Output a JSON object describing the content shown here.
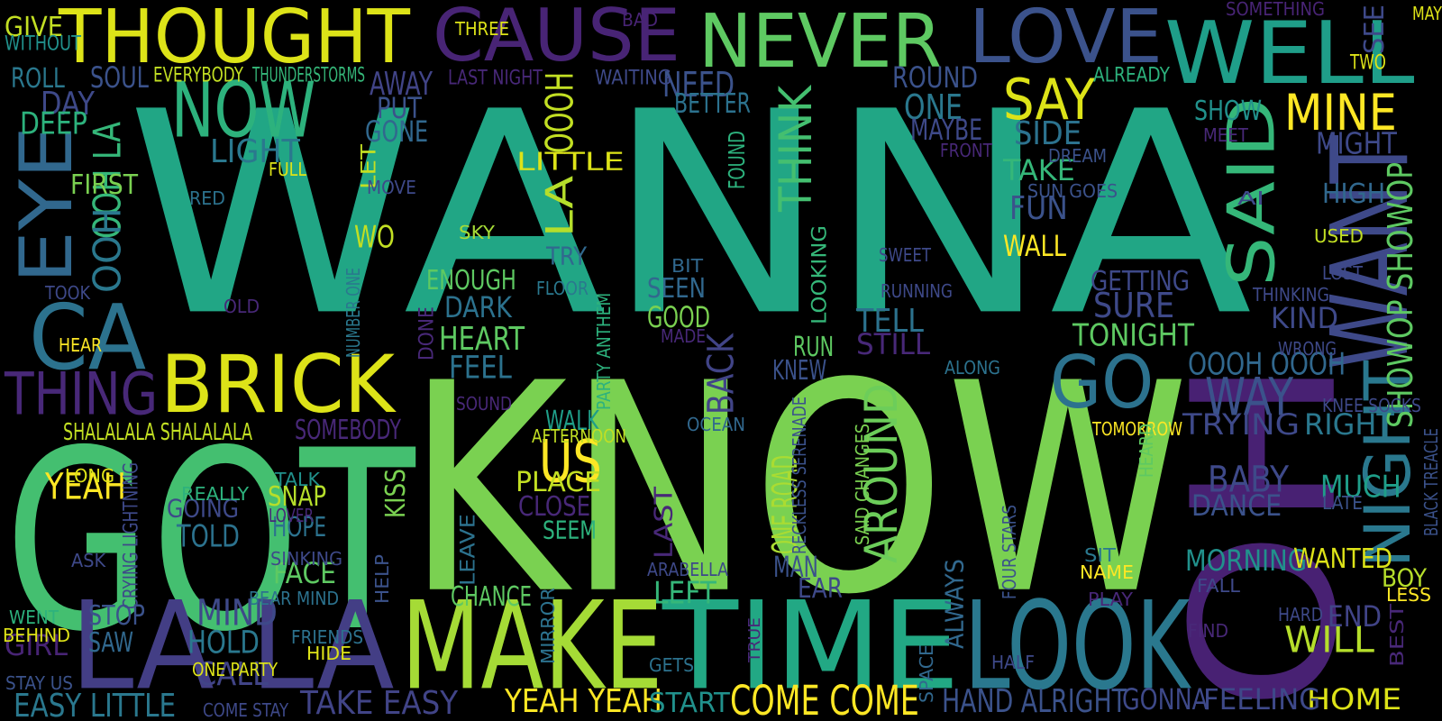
{
  "words": [
    {
      "text": "WANNA",
      "color": "#21a685",
      "vertical": false
    },
    {
      "text": "KNOW",
      "color": "#7ad151",
      "vertical": false
    },
    {
      "text": "GOT",
      "color": "#44bf70",
      "vertical": false
    },
    {
      "text": "OH",
      "color": "#482173",
      "vertical": true
    },
    {
      "text": "LOOK",
      "color": "#2a788e",
      "vertical": false
    },
    {
      "text": "TIME",
      "color": "#22a884",
      "vertical": false
    },
    {
      "text": "MAKE",
      "color": "#a5db36",
      "vertical": false
    },
    {
      "text": "LA LA",
      "color": "#433e85",
      "vertical": false
    },
    {
      "text": "THOUGHT",
      "color": "#dde318",
      "vertical": false
    },
    {
      "text": "CAUSE",
      "color": "#482475",
      "vertical": false
    },
    {
      "text": "NEVER",
      "color": "#5ec962",
      "vertical": false
    },
    {
      "text": "LOVE",
      "color": "#3b528b",
      "vertical": false
    },
    {
      "text": "WELL",
      "color": "#1f9e89",
      "vertical": false
    },
    {
      "text": "NOW",
      "color": "#2db27d",
      "vertical": false
    },
    {
      "text": "BRICK",
      "color": "#dde318",
      "vertical": false
    },
    {
      "text": "CA",
      "color": "#2c728e",
      "vertical": false
    },
    {
      "text": "EYE",
      "color": "#31688e",
      "vertical": true
    },
    {
      "text": "THING",
      "color": "#482878",
      "vertical": false
    },
    {
      "text": "GO",
      "color": "#2c728e",
      "vertical": false
    },
    {
      "text": "WANT",
      "color": "#3e4989",
      "vertical": true
    },
    {
      "text": "SAID",
      "color": "#35b779",
      "vertical": true
    },
    {
      "text": "NIGHT",
      "color": "#2a788e",
      "vertical": true
    },
    {
      "text": "SAY",
      "color": "#dde318",
      "vertical": false
    },
    {
      "text": "MINE",
      "color": "#fde725",
      "vertical": false
    },
    {
      "text": "WAY",
      "color": "#3b528b",
      "vertical": false
    },
    {
      "text": "AROUND",
      "color": "#6ccd5a",
      "vertical": true
    },
    {
      "text": "US",
      "color": "#fde725",
      "vertical": false
    },
    {
      "text": "THINK",
      "color": "#44bf70",
      "vertical": true
    },
    {
      "text": "OOOH",
      "color": "#c2df23",
      "vertical": true
    },
    {
      "text": "LA",
      "color": "#b5de2b",
      "vertical": true
    },
    {
      "text": "OOH LA",
      "color": "#35b779",
      "vertical": true
    },
    {
      "text": "OOH",
      "color": "#2a788e",
      "vertical": true
    },
    {
      "text": "HEART",
      "color": "#5ec962",
      "vertical": false
    },
    {
      "text": "DARK",
      "color": "#2c728e",
      "vertical": false
    },
    {
      "text": "FEEL",
      "color": "#2c728e",
      "vertical": false
    },
    {
      "text": "ENOUGH",
      "color": "#5ec962",
      "vertical": false
    },
    {
      "text": "TRY",
      "color": "#31688e",
      "vertical": false
    },
    {
      "text": "LITTLE",
      "color": "#dde318",
      "vertical": false
    },
    {
      "text": "YEAH",
      "color": "#fde725",
      "vertical": false
    },
    {
      "text": "GOING",
      "color": "#3e4989",
      "vertical": false
    },
    {
      "text": "TOLD",
      "color": "#2c728e",
      "vertical": false
    },
    {
      "text": "MIND",
      "color": "#3e4989",
      "vertical": false
    },
    {
      "text": "HOLD",
      "color": "#2a788e",
      "vertical": false
    },
    {
      "text": "CALL",
      "color": "#414487",
      "vertical": false
    },
    {
      "text": "STOP",
      "color": "#3b528b",
      "vertical": false
    },
    {
      "text": "SAW",
      "color": "#31688e",
      "vertical": false
    },
    {
      "text": "GIRL",
      "color": "#482475",
      "vertical": false
    },
    {
      "text": "FACE",
      "color": "#5ec962",
      "vertical": false
    },
    {
      "text": "HOPE",
      "color": "#2c728e",
      "vertical": false
    },
    {
      "text": "SNAP",
      "color": "#b5de2b",
      "vertical": false
    },
    {
      "text": "KISS",
      "color": "#7ad151",
      "vertical": true
    },
    {
      "text": "PLACE",
      "color": "#c2df23",
      "vertical": false
    },
    {
      "text": "CLOSE",
      "color": "#482878",
      "vertical": false
    },
    {
      "text": "SEEM",
      "color": "#2db27d",
      "vertical": false
    },
    {
      "text": "WALK",
      "color": "#1f9e89",
      "vertical": false
    },
    {
      "text": "GOOD",
      "color": "#7ad151",
      "vertical": false
    },
    {
      "text": "BACK",
      "color": "#414487",
      "vertical": true
    },
    {
      "text": "SEEN",
      "color": "#31688e",
      "vertical": false
    },
    {
      "text": "TELL",
      "color": "#2c728e",
      "vertical": false
    },
    {
      "text": "STILL",
      "color": "#482878",
      "vertical": false
    },
    {
      "text": "RUN",
      "color": "#5ec962",
      "vertical": false
    },
    {
      "text": "KNEW",
      "color": "#3b528b",
      "vertical": false
    },
    {
      "text": "TONIGHT",
      "color": "#5ec962",
      "vertical": false
    },
    {
      "text": "SURE",
      "color": "#3e4989",
      "vertical": false
    },
    {
      "text": "GETTING",
      "color": "#3e4989",
      "vertical": false
    },
    {
      "text": "TAKE",
      "color": "#35b779",
      "vertical": false
    },
    {
      "text": "FUN",
      "color": "#3b528b",
      "vertical": false
    },
    {
      "text": "WALL",
      "color": "#fde725",
      "vertical": false
    },
    {
      "text": "SIDE",
      "color": "#2c728e",
      "vertical": false
    },
    {
      "text": "ONE",
      "color": "#2a788e",
      "vertical": false
    },
    {
      "text": "MAYBE",
      "color": "#3e4989",
      "vertical": false
    },
    {
      "text": "ROUND",
      "color": "#3b528b",
      "vertical": false
    },
    {
      "text": "NEED",
      "color": "#3b528b",
      "vertical": false
    },
    {
      "text": "BETTER",
      "color": "#2c728e",
      "vertical": false
    },
    {
      "text": "AWAY",
      "color": "#414487",
      "vertical": false
    },
    {
      "text": "PUT",
      "color": "#3b528b",
      "vertical": false
    },
    {
      "text": "GONE",
      "color": "#31688e",
      "vertical": false
    },
    {
      "text": "LIGHT",
      "color": "#2a788e",
      "vertical": false
    },
    {
      "text": "SOUL",
      "color": "#3b528b",
      "vertical": false
    },
    {
      "text": "ROLL",
      "color": "#2a788e",
      "vertical": false
    },
    {
      "text": "DAY",
      "color": "#3e4989",
      "vertical": false
    },
    {
      "text": "DEEP",
      "color": "#2db27d",
      "vertical": false
    },
    {
      "text": "GIVE",
      "color": "#c2df23",
      "vertical": false
    },
    {
      "text": "WITHOUT",
      "color": "#21918c",
      "vertical": false
    },
    {
      "text": "FIRST",
      "color": "#7ad151",
      "vertical": false
    },
    {
      "text": "WO",
      "color": "#c2df23",
      "vertical": false
    },
    {
      "text": "MIGHT",
      "color": "#3e4989",
      "vertical": false
    },
    {
      "text": "SHOW",
      "color": "#21918c",
      "vertical": false
    },
    {
      "text": "HIGH",
      "color": "#31688e",
      "vertical": false
    },
    {
      "text": "KIND",
      "color": "#3e4989",
      "vertical": false
    },
    {
      "text": "OOOH OOOH",
      "color": "#31688e",
      "vertical": false
    },
    {
      "text": "TRYING",
      "color": "#3e4989",
      "vertical": false
    },
    {
      "text": "RIGHT",
      "color": "#2a788e",
      "vertical": false
    },
    {
      "text": "BABY",
      "color": "#3e4989",
      "vertical": false
    },
    {
      "text": "DANCE",
      "color": "#3b528b",
      "vertical": false
    },
    {
      "text": "MUCH",
      "color": "#1f9e89",
      "vertical": false
    },
    {
      "text": "MORNING",
      "color": "#21918c",
      "vertical": false
    },
    {
      "text": "WANTED",
      "color": "#dde318",
      "vertical": false
    },
    {
      "text": "BOY",
      "color": "#b5de2b",
      "vertical": false
    },
    {
      "text": "WILL",
      "color": "#b5de2b",
      "vertical": false
    },
    {
      "text": "END",
      "color": "#414487",
      "vertical": false
    },
    {
      "text": "HOME",
      "color": "#dde318",
      "vertical": false
    },
    {
      "text": "FEELING",
      "color": "#3e4989",
      "vertical": false
    },
    {
      "text": "GONNA",
      "color": "#3e4989",
      "vertical": false
    },
    {
      "text": "HAND ALRIGHT",
      "color": "#3b528b",
      "vertical": false
    },
    {
      "text": "COME COME",
      "color": "#fde725",
      "vertical": false
    },
    {
      "text": "YEAH YEAH",
      "color": "#fde725",
      "vertical": false
    },
    {
      "text": "START",
      "color": "#21918c",
      "vertical": false
    },
    {
      "text": "TAKE EASY",
      "color": "#414487",
      "vertical": false
    },
    {
      "text": "EASY LITTLE",
      "color": "#2a788e",
      "vertical": false
    },
    {
      "text": "SHOWOP SHOWOP",
      "color": "#5ec962",
      "vertical": true
    },
    {
      "text": "SHALALALA SHALALALA",
      "color": "#c2df23",
      "vertical": false
    },
    {
      "text": "SOMEBODY",
      "color": "#482878",
      "vertical": false
    },
    {
      "text": "CHANCE",
      "color": "#5ec962",
      "vertical": false
    },
    {
      "text": "LEFT",
      "color": "#35b779",
      "vertical": false
    },
    {
      "text": "MAN",
      "color": "#3b528b",
      "vertical": false
    },
    {
      "text": "EAR",
      "color": "#3e4989",
      "vertical": false
    },
    {
      "text": "ONE ROAD",
      "color": "#aadc32",
      "vertical": true
    },
    {
      "text": "LAST",
      "color": "#482878",
      "vertical": true
    },
    {
      "text": "LEAVE",
      "color": "#2c728e",
      "vertical": true
    },
    {
      "text": "LOOKING",
      "color": "#35b779",
      "vertical": true
    },
    {
      "text": "ALWAYS",
      "color": "#31688e",
      "vertical": true
    },
    {
      "text": "FOUND",
      "color": "#2db27d",
      "vertical": true
    },
    {
      "text": "THREE",
      "color": "#dde318",
      "vertical": false
    },
    {
      "text": "BAD",
      "color": "#482475",
      "vertical": false
    },
    {
      "text": "SOMETHING",
      "color": "#482475",
      "vertical": false
    },
    {
      "text": "SEE",
      "color": "#3e4989",
      "vertical": true
    },
    {
      "text": "MAY",
      "color": "#dde318",
      "vertical": false
    },
    {
      "text": "EVERYBODY",
      "color": "#c2df23",
      "vertical": false
    },
    {
      "text": "THUNDERSTORMS",
      "color": "#35b779",
      "vertical": false
    },
    {
      "text": "LAST NIGHT",
      "color": "#482878",
      "vertical": false
    },
    {
      "text": "WAITING",
      "color": "#3e4989",
      "vertical": false
    },
    {
      "text": "ALREADY",
      "color": "#2db27d",
      "vertical": false
    },
    {
      "text": "TWO",
      "color": "#dde318",
      "vertical": false
    },
    {
      "text": "MEET",
      "color": "#482878",
      "vertical": false
    },
    {
      "text": "DREAM",
      "color": "#3b528b",
      "vertical": false
    },
    {
      "text": "FRONT",
      "color": "#482878",
      "vertical": false
    },
    {
      "text": "SUN GOES",
      "color": "#3b528b",
      "vertical": false
    },
    {
      "text": "AI",
      "color": "#3e4989",
      "vertical": false
    },
    {
      "text": "USED",
      "color": "#c2df23",
      "vertical": false
    },
    {
      "text": "LOST",
      "color": "#3e4989",
      "vertical": false
    },
    {
      "text": "SWEET",
      "color": "#3e4989",
      "vertical": false
    },
    {
      "text": "RUNNING",
      "color": "#3e4989",
      "vertical": false
    },
    {
      "text": "THINKING",
      "color": "#3e4989",
      "vertical": false
    },
    {
      "text": "WRONG",
      "color": "#3e4989",
      "vertical": false
    },
    {
      "text": "ALONG",
      "color": "#2c728e",
      "vertical": false
    },
    {
      "text": "KNEE SOCKS",
      "color": "#3e4989",
      "vertical": false
    },
    {
      "text": "BLACK TREACLE",
      "color": "#3b528b",
      "vertical": true
    },
    {
      "text": "TOMORROW",
      "color": "#fde725",
      "vertical": false
    },
    {
      "text": "HEARD",
      "color": "#5ec962",
      "vertical": true
    },
    {
      "text": "LATE",
      "color": "#3b528b",
      "vertical": false
    },
    {
      "text": "SAID CHANGES",
      "color": "#7ad151",
      "vertical": true
    },
    {
      "text": "FOUR STARS",
      "color": "#3b528b",
      "vertical": true
    },
    {
      "text": "SIT",
      "color": "#2a788e",
      "vertical": false
    },
    {
      "text": "NAME",
      "color": "#fde725",
      "vertical": false
    },
    {
      "text": "PLAY",
      "color": "#482878",
      "vertical": false
    },
    {
      "text": "FALL",
      "color": "#3e4989",
      "vertical": false
    },
    {
      "text": "LESS",
      "color": "#fde725",
      "vertical": false
    },
    {
      "text": "HARD",
      "color": "#3e4989",
      "vertical": false
    },
    {
      "text": "FIND",
      "color": "#482878",
      "vertical": false
    },
    {
      "text": "BEST",
      "color": "#482878",
      "vertical": true
    },
    {
      "text": "HALF",
      "color": "#3e4989",
      "vertical": false
    },
    {
      "text": "SPACE",
      "color": "#31688e",
      "vertical": true
    },
    {
      "text": "GETS",
      "color": "#2c728e",
      "vertical": false
    },
    {
      "text": "TRUE",
      "color": "#482878",
      "vertical": true
    },
    {
      "text": "RECKLESS SERENADE",
      "color": "#3b528b",
      "vertical": true
    },
    {
      "text": "ARABELLA",
      "color": "#3e4989",
      "vertical": false
    },
    {
      "text": "OCEAN",
      "color": "#31688e",
      "vertical": false
    },
    {
      "text": "AFTERNOON",
      "color": "#c2df23",
      "vertical": false
    },
    {
      "text": "MADE",
      "color": "#482878",
      "vertical": false
    },
    {
      "text": "BIT",
      "color": "#31688e",
      "vertical": false
    },
    {
      "text": "SKY",
      "color": "#a5db36",
      "vertical": false
    },
    {
      "text": "FLOOR",
      "color": "#2a788e",
      "vertical": false
    },
    {
      "text": "PARTY ANTHEM",
      "color": "#2db27d",
      "vertical": true
    },
    {
      "text": "SOUND",
      "color": "#482878",
      "vertical": false
    },
    {
      "text": "DONE",
      "color": "#482878",
      "vertical": true
    },
    {
      "text": "MIRROR",
      "color": "#2c728e",
      "vertical": true
    },
    {
      "text": "HELP",
      "color": "#3b528b",
      "vertical": true
    },
    {
      "text": "FRIENDS",
      "color": "#2c728e",
      "vertical": false
    },
    {
      "text": "HIDE",
      "color": "#dde318",
      "vertical": false
    },
    {
      "text": "ONE PARTY",
      "color": "#dde318",
      "vertical": false
    },
    {
      "text": "BEAR MIND",
      "color": "#2c728e",
      "vertical": false
    },
    {
      "text": "SINKING",
      "color": "#3e4989",
      "vertical": false
    },
    {
      "text": "LOVER",
      "color": "#482878",
      "vertical": false
    },
    {
      "text": "TALK",
      "color": "#21918c",
      "vertical": false
    },
    {
      "text": "REALLY",
      "color": "#2db27d",
      "vertical": false
    },
    {
      "text": "LONG",
      "color": "#dde318",
      "vertical": false
    },
    {
      "text": "CRYING LIGHTNING",
      "color": "#3e4989",
      "vertical": true
    },
    {
      "text": "ASK",
      "color": "#3e4989",
      "vertical": false
    },
    {
      "text": "WENT",
      "color": "#2db27d",
      "vertical": false
    },
    {
      "text": "BEHIND",
      "color": "#dde318",
      "vertical": false
    },
    {
      "text": "STAY US",
      "color": "#3b528b",
      "vertical": false
    },
    {
      "text": "COME STAY",
      "color": "#3e4989",
      "vertical": false
    },
    {
      "text": "HEAR",
      "color": "#fde725",
      "vertical": false
    },
    {
      "text": "TOOK",
      "color": "#3e4989",
      "vertical": false
    },
    {
      "text": "OLD",
      "color": "#482878",
      "vertical": false
    },
    {
      "text": "RED",
      "color": "#2c728e",
      "vertical": false
    },
    {
      "text": "FULL",
      "color": "#dde318",
      "vertical": false
    },
    {
      "text": "LET",
      "color": "#c2df23",
      "vertical": true
    },
    {
      "text": "MOVE",
      "color": "#3e4989",
      "vertical": false
    },
    {
      "text": "NUMBER ONE",
      "color": "#2a788e",
      "vertical": true
    }
  ]
}
